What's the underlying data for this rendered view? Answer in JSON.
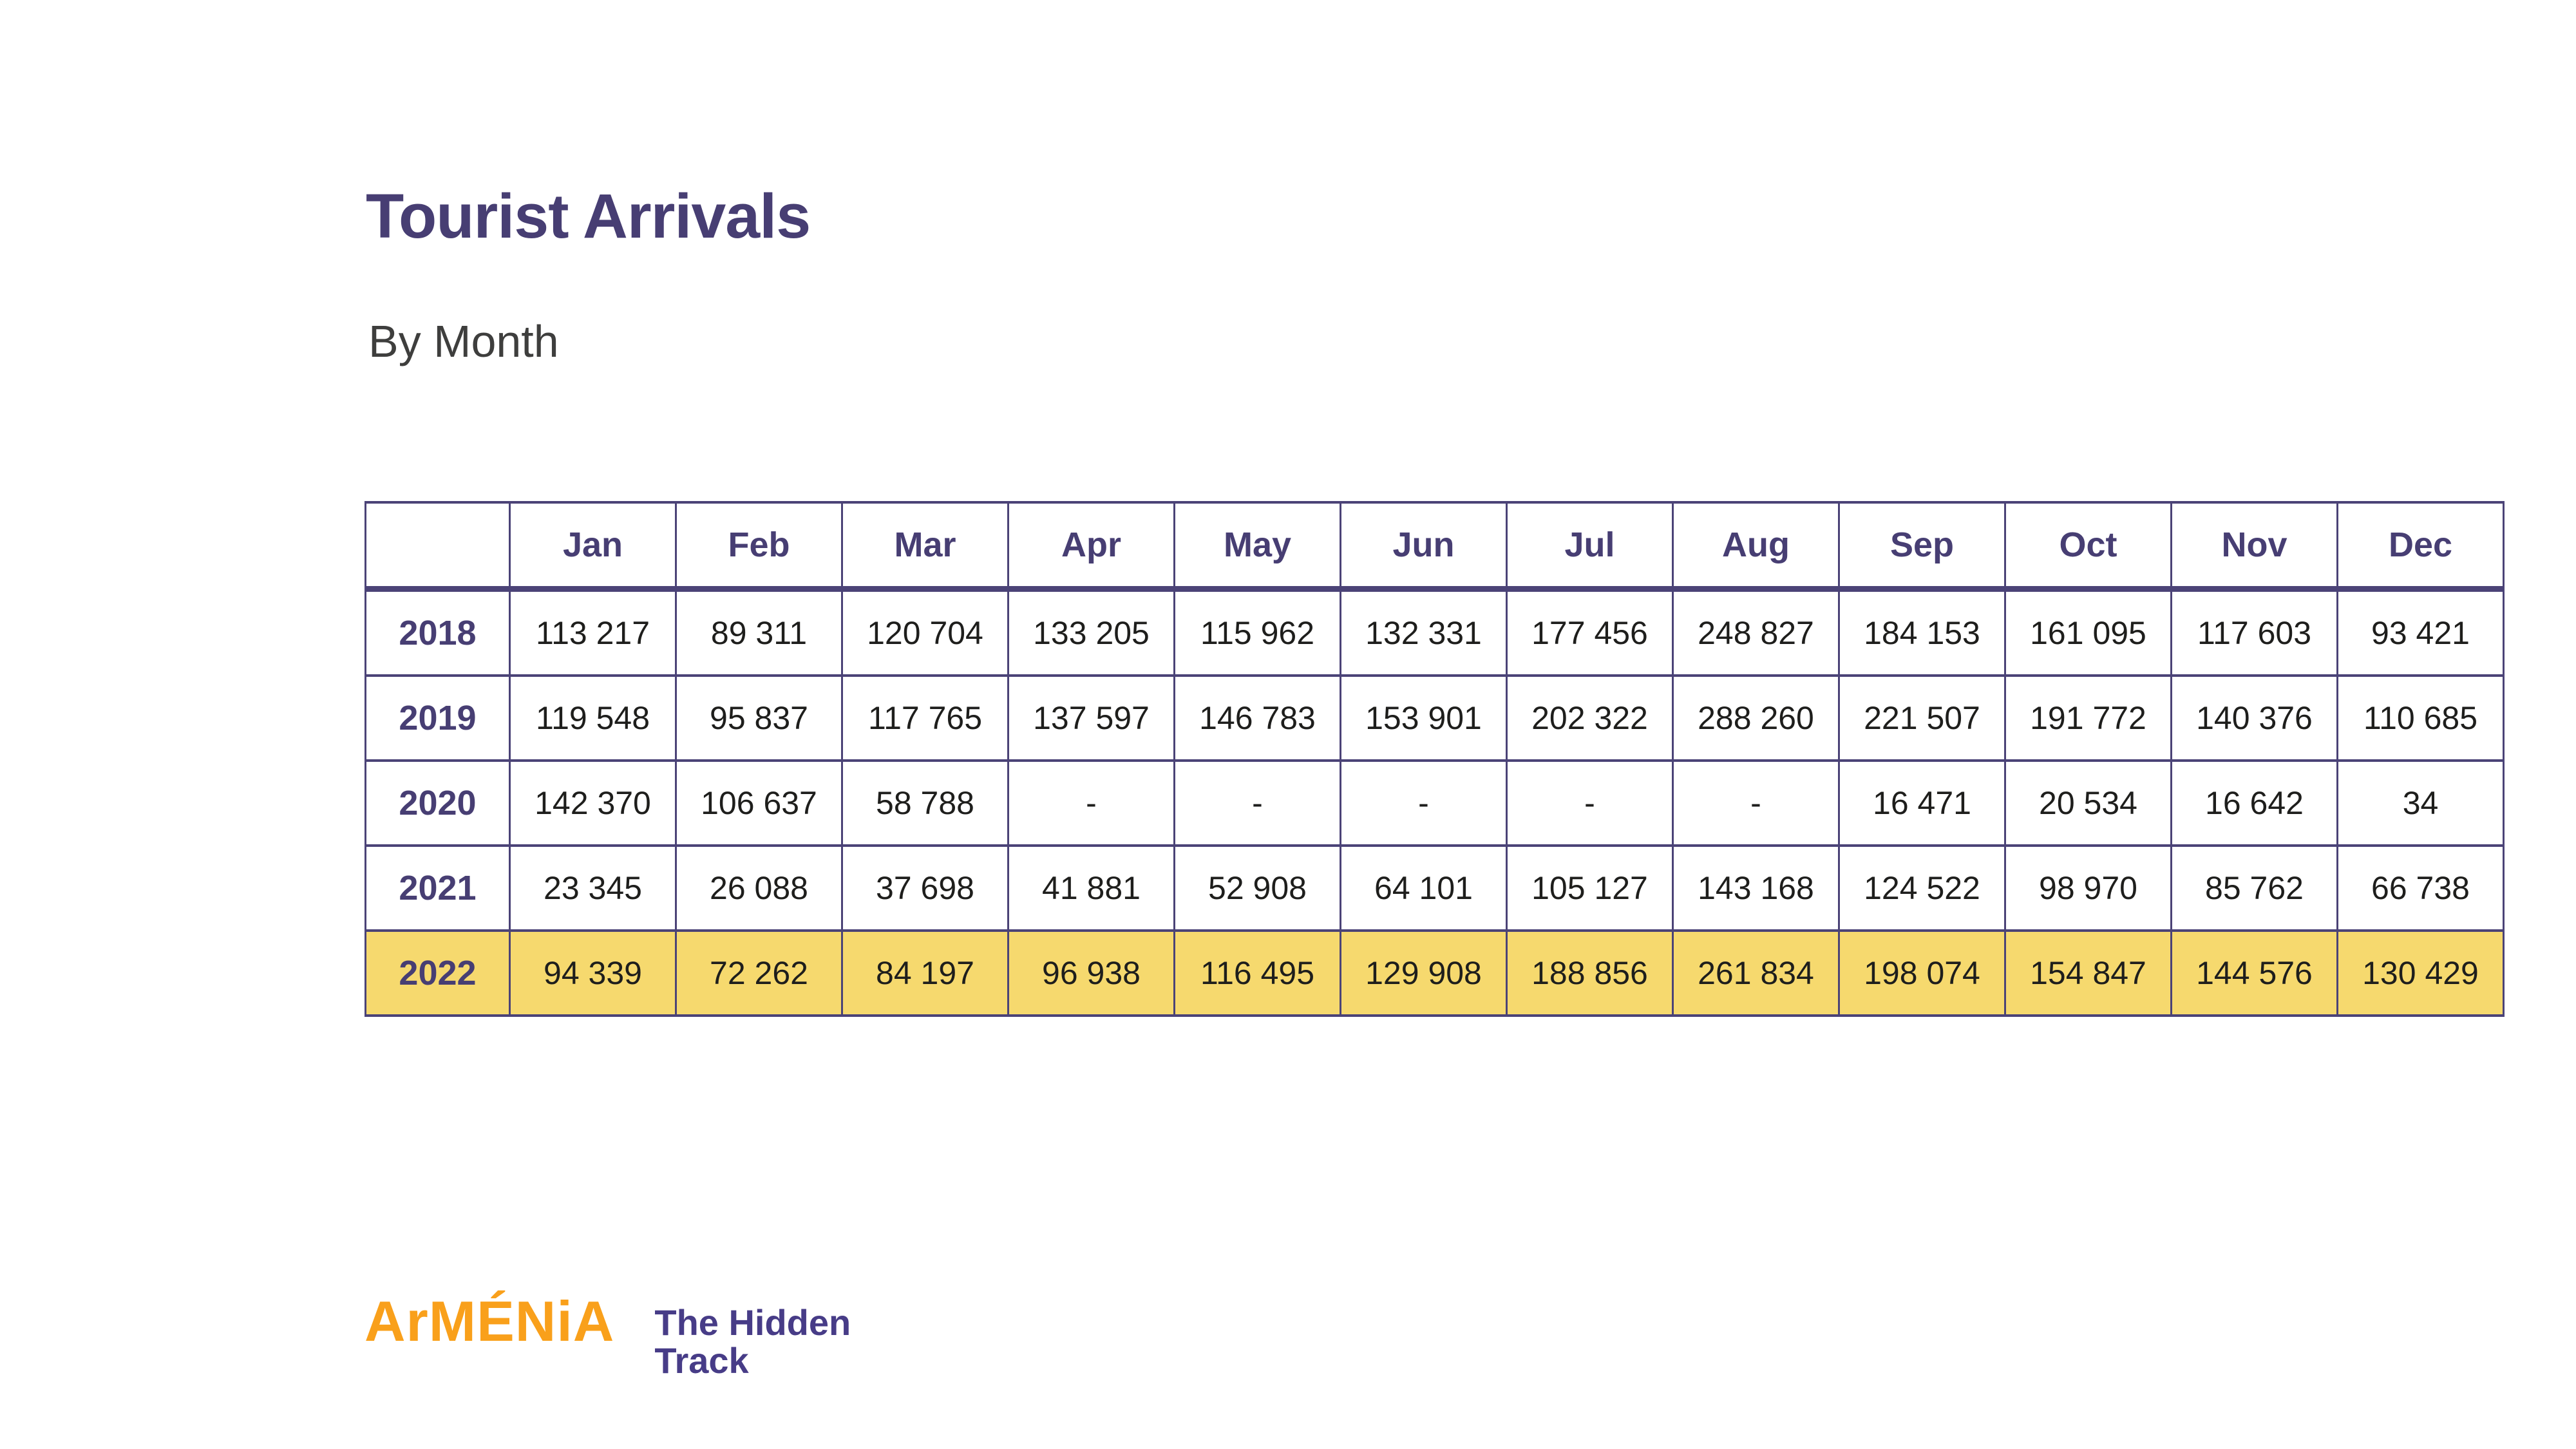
{
  "page": {
    "title": "Tourist Arrivals",
    "subtitle": "By Month"
  },
  "table": {
    "corner": "",
    "months": [
      "Jan",
      "Feb",
      "Mar",
      "Apr",
      "May",
      "Jun",
      "Jul",
      "Aug",
      "Sep",
      "Oct",
      "Nov",
      "Dec"
    ],
    "rows": [
      {
        "year": "2018",
        "highlighted": false,
        "values": [
          "113 217",
          "89 311",
          "120 704",
          "133 205",
          "115 962",
          "132 331",
          "177 456",
          "248 827",
          "184 153",
          "161 095",
          "117 603",
          "93 421"
        ]
      },
      {
        "year": "2019",
        "highlighted": false,
        "values": [
          "119 548",
          "95 837",
          "117 765",
          "137 597",
          "146 783",
          "153 901",
          "202 322",
          "288 260",
          "221 507",
          "191 772",
          "140 376",
          "110 685"
        ]
      },
      {
        "year": "2020",
        "highlighted": false,
        "values": [
          "142 370",
          "106 637",
          "58 788",
          "-",
          "-",
          "-",
          "-",
          "-",
          "16 471",
          "20 534",
          "16 642",
          "34"
        ]
      },
      {
        "year": "2021",
        "highlighted": false,
        "values": [
          "23 345",
          "26 088",
          "37 698",
          "41 881",
          "52 908",
          "64 101",
          "105 127",
          "143 168",
          "124 522",
          "98 970",
          "85 762",
          "66 738"
        ]
      },
      {
        "year": "2022",
        "highlighted": true,
        "values": [
          "94 339",
          "72 262",
          "84 197",
          "96 938",
          "116 495",
          "129 908",
          "188 856",
          "261 834",
          "198 074",
          "154 847",
          "144 576",
          "130 429"
        ]
      }
    ]
  },
  "logo": {
    "brand": "ArMÉNiA",
    "tagline_line1": "The Hidden",
    "tagline_line2": "Track"
  },
  "colors": {
    "title_purple": "#473E73",
    "border_purple": "#4B4377",
    "highlight_yellow": "#F6D96E",
    "number_text": "#1E1E1C",
    "subtitle_gray": "#3E3E3D",
    "brand_orange": "#F9A01B",
    "brand_purple": "#473C87"
  }
}
